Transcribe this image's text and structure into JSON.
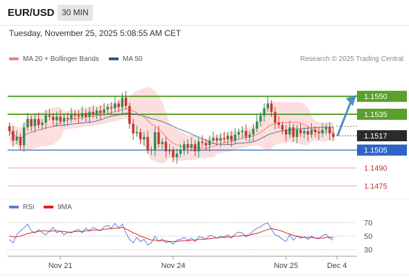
{
  "header": {
    "pair": "EUR/USD",
    "timeframe": "30 MIN"
  },
  "timestamp": "Tuesday, November 25, 2025 5:08:55 AM CET",
  "legend": {
    "ma20": {
      "label": "MA 20 + Bollinger Bands",
      "color": "#f08080"
    },
    "ma50": {
      "label": "MA 50",
      "color": "#2f5597"
    }
  },
  "credit": "Research © 2025 Trading Central",
  "rsi_legend": {
    "rsi": {
      "label": "RSI",
      "color": "#5b7fd6"
    },
    "ma9": {
      "label": "9MA",
      "color": "#e02020"
    }
  },
  "colors": {
    "up": "#2e8b57",
    "down": "#c0392b",
    "resistance": "#5aa02c",
    "support": "#2f63c6",
    "target": "#4a90c0"
  },
  "chart_data": [
    {
      "type": "candlestick",
      "price_range": [
        1.1466,
        1.1575
      ],
      "current_price": "1.1517",
      "levels": [
        {
          "value": 1.155,
          "label": "1.1550",
          "kind": "resistance"
        },
        {
          "value": 1.1535,
          "label": "1.1535",
          "kind": "resistance"
        },
        {
          "value": 1.1517,
          "label": "1.1517",
          "kind": "current"
        },
        {
          "value": 1.1505,
          "label": "1.1505",
          "kind": "support"
        },
        {
          "value": 1.149,
          "label": "1.1490",
          "kind": "support-minor"
        },
        {
          "value": 1.1475,
          "label": "1.1475",
          "kind": "support-minor"
        }
      ],
      "x_ticks": [
        "Nov 21",
        "Nov 24",
        "Nov 25",
        "Dec 4"
      ],
      "x_tick_index": [
        14,
        45,
        76,
        90
      ],
      "n_slots": 96,
      "target": {
        "from": 1.1517,
        "to": 1.155
      },
      "close": [
        1.1521,
        1.1513,
        1.1516,
        1.1509,
        1.1524,
        1.1531,
        1.1525,
        1.1531,
        1.1526,
        1.1528,
        1.1534,
        1.1533,
        1.153,
        1.1533,
        1.1529,
        1.1532,
        1.1531,
        1.1535,
        1.1534,
        1.1533,
        1.1536,
        1.1533,
        1.1537,
        1.1535,
        1.1538,
        1.1536,
        1.1539,
        1.1541,
        1.154,
        1.1544,
        1.1541,
        1.1549,
        1.1542,
        1.1527,
        1.1519,
        1.152,
        1.1514,
        1.1516,
        1.1505,
        1.1505,
        1.152,
        1.151,
        1.1512,
        1.1504,
        1.1505,
        1.1499,
        1.1502,
        1.1505,
        1.151,
        1.1507,
        1.151,
        1.1504,
        1.1512,
        1.1511,
        1.1509,
        1.1513,
        1.1515,
        1.1513,
        1.1515,
        1.1514,
        1.1517,
        1.1513,
        1.1518,
        1.152,
        1.1521,
        1.1516,
        1.1518,
        1.1523,
        1.1529,
        1.1534,
        1.154,
        1.1544,
        1.1537,
        1.1528,
        1.1526,
        1.1522,
        1.1518,
        1.1524,
        1.1516,
        1.1522,
        1.1519,
        1.1521,
        1.1518,
        1.1522,
        1.152,
        1.1519,
        1.1522,
        1.1524,
        1.1519,
        1.1516
      ]
    },
    {
      "type": "line",
      "name": "RSI",
      "y_ticks": [
        70,
        50,
        30
      ],
      "y_range": [
        20,
        80
      ],
      "rsi": [
        45,
        40,
        52,
        58,
        62,
        68,
        58,
        55,
        60,
        55,
        52,
        58,
        63,
        55,
        58,
        52,
        56,
        55,
        58,
        60,
        55,
        62,
        58,
        63,
        60,
        58,
        64,
        66,
        62,
        69,
        62,
        68,
        55,
        45,
        40,
        48,
        42,
        45,
        37,
        40,
        50,
        42,
        46,
        40,
        42,
        38,
        44,
        45,
        48,
        44,
        47,
        42,
        49,
        48,
        45,
        51,
        50,
        47,
        50,
        49,
        52,
        47,
        53,
        56,
        55,
        49,
        52,
        58,
        62,
        64,
        68,
        70,
        60,
        52,
        50,
        45,
        42,
        52,
        44,
        50,
        47,
        49,
        45,
        50,
        47,
        46,
        51,
        53,
        47,
        44
      ],
      "ma9": [
        50,
        49,
        49,
        50,
        52,
        54,
        55,
        56,
        57,
        58,
        58,
        57,
        58,
        58,
        57,
        57,
        56,
        56,
        57,
        57,
        57,
        58,
        58,
        59,
        59,
        59,
        60,
        61,
        61,
        62,
        62,
        63,
        61,
        58,
        55,
        53,
        50,
        48,
        46,
        44,
        44,
        43,
        43,
        43,
        42,
        42,
        42,
        43,
        43,
        43,
        44,
        44,
        45,
        45,
        46,
        46,
        47,
        47,
        48,
        48,
        49,
        49,
        50,
        50,
        51,
        51,
        52,
        53,
        54,
        56,
        58,
        60,
        61,
        60,
        59,
        57,
        55,
        53,
        51,
        50,
        49,
        48,
        48,
        48,
        47,
        47,
        47,
        48,
        48,
        48
      ]
    }
  ]
}
